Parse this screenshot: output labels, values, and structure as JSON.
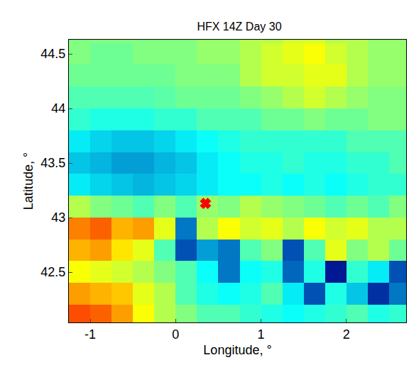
{
  "chart_data": {
    "type": "heatmap",
    "title": "HFX 14Z Day 30",
    "x_label": "Longitude, °",
    "y_label": "Latitude, °",
    "xlim": [
      -1.25,
      2.7
    ],
    "ylim": [
      42.04,
      44.63
    ],
    "xticks": [
      -1,
      0,
      1,
      2
    ],
    "yticks": [
      42.5,
      43,
      43.5,
      44,
      44.5
    ],
    "grid": false,
    "x": [
      -1.125,
      -0.875,
      -0.625,
      -0.375,
      -0.125,
      0.125,
      0.375,
      0.625,
      0.875,
      1.125,
      1.375,
      1.625,
      1.875,
      2.125,
      2.375,
      2.625
    ],
    "y": [
      42.1,
      42.3,
      42.5,
      42.7,
      42.9,
      43.1,
      43.3,
      43.5,
      43.7,
      43.9,
      44.1,
      44.3,
      44.5,
      44.7
    ],
    "zlim": [
      0,
      100
    ],
    "cells": [
      [
        80,
        78,
        72,
        62,
        55,
        50,
        45,
        45,
        42,
        40,
        38,
        40,
        42,
        45,
        40,
        42
      ],
      [
        72,
        70,
        68,
        60,
        55,
        45,
        40,
        38,
        40,
        45,
        35,
        15,
        40,
        30,
        10,
        20
      ],
      [
        62,
        60,
        58,
        55,
        50,
        45,
        38,
        20,
        38,
        40,
        18,
        40,
        5,
        42,
        35,
        15
      ],
      [
        70,
        72,
        65,
        60,
        45,
        15,
        25,
        20,
        45,
        50,
        15,
        45,
        60,
        50,
        55,
        48
      ],
      [
        75,
        78,
        70,
        72,
        60,
        20,
        55,
        62,
        58,
        60,
        55,
        62,
        58,
        60,
        55,
        55
      ],
      [
        55,
        50,
        48,
        45,
        50,
        45,
        52,
        50,
        55,
        52,
        50,
        48,
        45,
        48,
        45,
        50
      ],
      [
        35,
        32,
        30,
        28,
        30,
        32,
        35,
        38,
        38,
        40,
        38,
        40,
        38,
        40,
        42,
        42
      ],
      [
        30,
        28,
        25,
        25,
        28,
        30,
        35,
        38,
        40,
        40,
        42,
        40,
        40,
        42,
        42,
        45
      ],
      [
        35,
        32,
        30,
        30,
        32,
        35,
        38,
        40,
        42,
        42,
        42,
        42,
        42,
        45,
        45,
        45
      ],
      [
        42,
        40,
        40,
        40,
        42,
        42,
        45,
        45,
        45,
        48,
        48,
        50,
        48,
        48,
        50,
        50
      ],
      [
        45,
        45,
        45,
        45,
        46,
        48,
        48,
        48,
        50,
        52,
        55,
        58,
        55,
        52,
        50,
        50
      ],
      [
        48,
        48,
        48,
        48,
        48,
        50,
        50,
        50,
        55,
        58,
        58,
        60,
        60,
        55,
        52,
        52
      ],
      [
        50,
        48,
        48,
        50,
        50,
        50,
        52,
        52,
        55,
        58,
        60,
        62,
        58,
        55,
        52,
        52
      ],
      [
        50,
        50,
        50,
        50,
        50,
        50,
        52,
        52,
        55,
        55,
        58,
        58,
        55,
        55,
        52,
        52
      ]
    ],
    "series": [
      {
        "type": "scatter",
        "marker": "x",
        "color": "red",
        "x": [
          0.35
        ],
        "y": [
          43.13
        ]
      }
    ]
  }
}
